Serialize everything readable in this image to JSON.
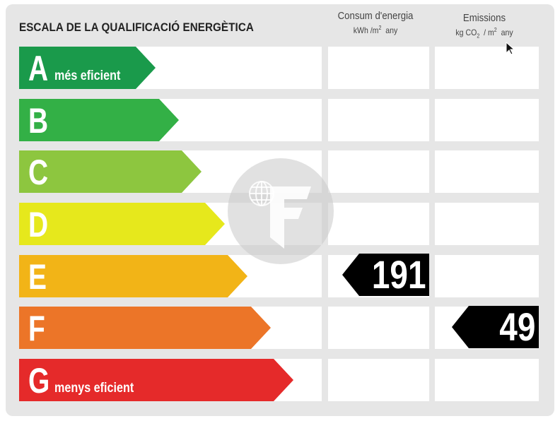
{
  "title": "ESCALA DE LA QUALIFICACIÓ ENERGÈTICA",
  "columns": {
    "energy": {
      "label": "Consum d'energia",
      "unit_prefix": "kWh /m",
      "unit_sup": "2",
      "unit_suffix": "any"
    },
    "emissions": {
      "label": "Emissions",
      "unit_prefix": "kg CO",
      "unit_sub": "2",
      "unit_mid": "/ m",
      "unit_sup": "2",
      "unit_suffix": "any"
    }
  },
  "ratings": [
    {
      "letter": "A",
      "desc": "més eficient",
      "color": "#1a9a4b"
    },
    {
      "letter": "B",
      "desc": "",
      "color": "#33b046"
    },
    {
      "letter": "C",
      "desc": "",
      "color": "#8dc63f"
    },
    {
      "letter": "D",
      "desc": "",
      "color": "#e6e81c"
    },
    {
      "letter": "E",
      "desc": "",
      "color": "#f2b417"
    },
    {
      "letter": "F",
      "desc": "",
      "color": "#ec7528"
    },
    {
      "letter": "G",
      "desc": "menys eficient",
      "color": "#e52a2a"
    }
  ],
  "values": {
    "energy": {
      "value": "191",
      "rating": "E"
    },
    "emissions": {
      "value": "49",
      "rating": "F"
    }
  },
  "icons": {
    "watermark": "logo-f-icon",
    "cursor": "mouse-pointer-icon"
  }
}
